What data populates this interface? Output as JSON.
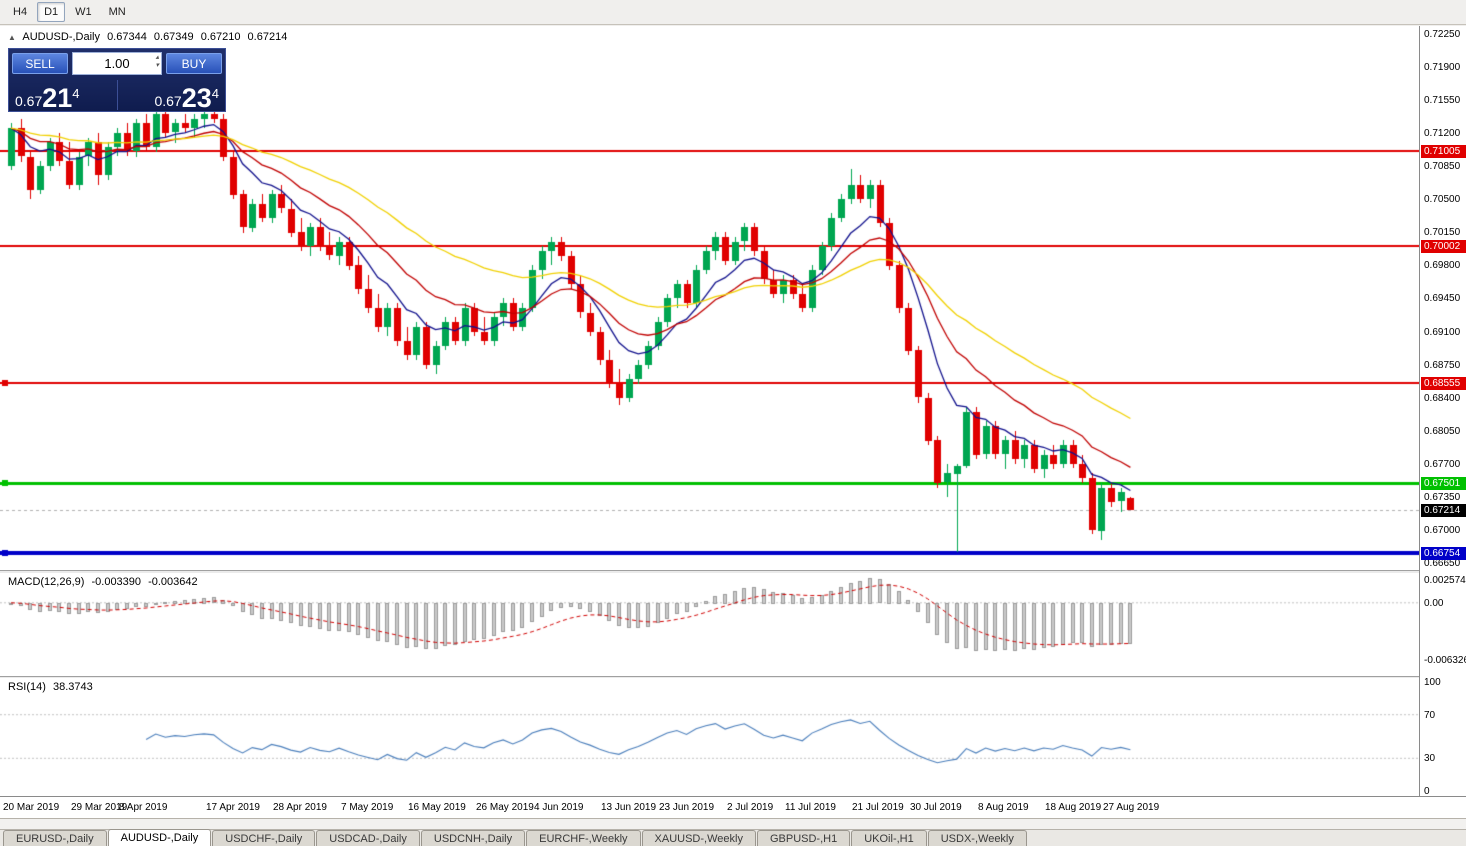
{
  "toolbar": {
    "timeframes": [
      {
        "label": "H4",
        "active": false
      },
      {
        "label": "D1",
        "active": true
      },
      {
        "label": "W1",
        "active": false
      },
      {
        "label": "MN",
        "active": false
      }
    ]
  },
  "icons": {
    "symbol_marker": "▲",
    "volume_spin_up": "▴",
    "volume_spin_down": "▾"
  },
  "chart_header": {
    "symbol": "AUDUSD-,Daily",
    "open": "0.67344",
    "high": "0.67349",
    "low": "0.67210",
    "close": "0.67214"
  },
  "trade_panel": {
    "sell_label": "SELL",
    "buy_label": "BUY",
    "volume": "1.00",
    "sell_price_prefix": "0.67",
    "sell_price_big": "21",
    "sell_price_sup": "4",
    "buy_price_prefix": "0.67",
    "buy_price_big": "23",
    "buy_price_sup": "4"
  },
  "macd_panel": {
    "title": "MACD(12,26,9)",
    "value_main": "-0.003390",
    "value_signal": "-0.003642",
    "axis": [
      "0.002574",
      "0.00",
      "-0.006326"
    ]
  },
  "rsi_panel": {
    "title": "RSI(14)",
    "value": "38.3743",
    "axis": [
      "100",
      "70",
      "30",
      "0"
    ]
  },
  "colors": {
    "bull": "#00a651",
    "bear": "#e00000",
    "ma_fast": "#10108c",
    "ma_medium": "#c00000",
    "ma_slow": "#f0d000",
    "level_red": "#e00000",
    "level_green": "#00c000",
    "level_blue": "#0000c8",
    "current_badge": "#000000",
    "macd_hist": "#c9c9c9",
    "macd_hist_border": "#9c9c9c",
    "macd_signal": "#d00000",
    "rsi_line": "#4a7ebb",
    "grid_dashed": "#c0c0c0"
  },
  "chart_data": {
    "type": "candlestick",
    "symbol": "AUDUSD-",
    "timeframe": "Daily",
    "price_range": {
      "top": 0.7233,
      "bottom": 0.6659
    },
    "price_axis_ticks": [
      "0.72250",
      "0.71900",
      "0.71550",
      "0.71200",
      "0.70850",
      "0.70500",
      "0.70150",
      "0.69800",
      "0.69450",
      "0.69100",
      "0.68750",
      "0.68400",
      "0.68050",
      "0.67700",
      "0.67350",
      "0.67000",
      "0.66650"
    ],
    "levels": [
      {
        "price": 0.71005,
        "label": "0.71005",
        "color": "#e00000",
        "width": 2,
        "handle": false,
        "type": "resistance"
      },
      {
        "price": 0.70002,
        "label": "0.70002",
        "color": "#e00000",
        "width": 2,
        "handle": false,
        "type": "resistance"
      },
      {
        "price": 0.68555,
        "label": "0.68555",
        "color": "#e00000",
        "width": 2,
        "handle": true,
        "type": "resistance"
      },
      {
        "price": 0.67501,
        "label": "0.67501",
        "color": "#00c000",
        "width": 3,
        "handle": true,
        "type": "support"
      },
      {
        "price": 0.66754,
        "label": "0.66754",
        "color": "#0000c8",
        "width": 4,
        "handle": true,
        "type": "support"
      }
    ],
    "current_price": {
      "value": 0.67214,
      "label": "0.67214"
    },
    "moving_averages": [
      {
        "name": "fast",
        "method": "ema",
        "period": 8,
        "color": "#10108c"
      },
      {
        "name": "medium",
        "method": "ema",
        "period": 16,
        "color": "#c00000"
      },
      {
        "name": "slow",
        "method": "ema",
        "period": 34,
        "color": "#f0d000"
      }
    ],
    "macd": {
      "fast": 12,
      "slow": 26,
      "signal": 9,
      "range": {
        "top": 0.0033,
        "bottom": -0.008
      }
    },
    "rsi": {
      "period": 14,
      "levels": [
        70,
        30
      ]
    },
    "date_labels": [
      {
        "i": 0,
        "t": "20 Mar 2019"
      },
      {
        "i": 7,
        "t": "29 Mar 2019"
      },
      {
        "i": 12,
        "t": "8 Apr 2019"
      },
      {
        "i": 21,
        "t": "17 Apr 2019"
      },
      {
        "i": 28,
        "t": "28 Apr 2019"
      },
      {
        "i": 35,
        "t": "7 May 2019"
      },
      {
        "i": 42,
        "t": "16 May 2019"
      },
      {
        "i": 49,
        "t": "26 May 2019"
      },
      {
        "i": 55,
        "t": "4 Jun 2019"
      },
      {
        "i": 62,
        "t": "13 Jun 2019"
      },
      {
        "i": 68,
        "t": "23 Jun 2019"
      },
      {
        "i": 75,
        "t": "2 Jul 2019"
      },
      {
        "i": 81,
        "t": "11 Jul 2019"
      },
      {
        "i": 88,
        "t": "21 Jul 2019"
      },
      {
        "i": 94,
        "t": "30 Jul 2019"
      },
      {
        "i": 101,
        "t": "8 Aug 2019"
      },
      {
        "i": 108,
        "t": "18 Aug 2019"
      },
      {
        "i": 114,
        "t": "27 Aug 2019"
      }
    ],
    "candles": [
      [
        0.7085,
        0.713,
        0.708,
        0.7125
      ],
      [
        0.7125,
        0.7135,
        0.709,
        0.7095
      ],
      [
        0.7095,
        0.71,
        0.705,
        0.706
      ],
      [
        0.706,
        0.709,
        0.7055,
        0.7085
      ],
      [
        0.7085,
        0.7115,
        0.708,
        0.711
      ],
      [
        0.711,
        0.712,
        0.7085,
        0.709
      ],
      [
        0.709,
        0.711,
        0.706,
        0.7065
      ],
      [
        0.7065,
        0.71,
        0.706,
        0.7095
      ],
      [
        0.7095,
        0.7115,
        0.7085,
        0.711
      ],
      [
        0.711,
        0.712,
        0.7065,
        0.7075
      ],
      [
        0.7075,
        0.711,
        0.707,
        0.7105
      ],
      [
        0.7105,
        0.7125,
        0.7095,
        0.712
      ],
      [
        0.712,
        0.713,
        0.7095,
        0.71
      ],
      [
        0.71,
        0.7135,
        0.7095,
        0.713
      ],
      [
        0.713,
        0.714,
        0.71,
        0.7105
      ],
      [
        0.7105,
        0.7145,
        0.71,
        0.714
      ],
      [
        0.714,
        0.7145,
        0.7115,
        0.712
      ],
      [
        0.712,
        0.7135,
        0.711,
        0.713
      ],
      [
        0.713,
        0.714,
        0.712,
        0.7125
      ],
      [
        0.7125,
        0.714,
        0.7115,
        0.7135
      ],
      [
        0.7135,
        0.7145,
        0.7125,
        0.714
      ],
      [
        0.714,
        0.7148,
        0.713,
        0.7135
      ],
      [
        0.7135,
        0.714,
        0.709,
        0.7095
      ],
      [
        0.7095,
        0.71,
        0.705,
        0.7055
      ],
      [
        0.7055,
        0.706,
        0.7015,
        0.702
      ],
      [
        0.702,
        0.705,
        0.7015,
        0.7045
      ],
      [
        0.7045,
        0.7055,
        0.7025,
        0.703
      ],
      [
        0.703,
        0.706,
        0.7025,
        0.7055
      ],
      [
        0.7055,
        0.7065,
        0.7035,
        0.704
      ],
      [
        0.704,
        0.705,
        0.701,
        0.7015
      ],
      [
        0.7015,
        0.703,
        0.6995,
        0.7
      ],
      [
        0.7,
        0.7025,
        0.699,
        0.702
      ],
      [
        0.702,
        0.703,
        0.6995,
        0.7
      ],
      [
        0.7,
        0.7015,
        0.6985,
        0.699
      ],
      [
        0.699,
        0.701,
        0.698,
        0.7005
      ],
      [
        0.7005,
        0.701,
        0.6975,
        0.698
      ],
      [
        0.698,
        0.699,
        0.695,
        0.6955
      ],
      [
        0.6955,
        0.697,
        0.693,
        0.6935
      ],
      [
        0.6935,
        0.695,
        0.691,
        0.6915
      ],
      [
        0.6915,
        0.694,
        0.6905,
        0.6935
      ],
      [
        0.6935,
        0.694,
        0.6895,
        0.69
      ],
      [
        0.69,
        0.6915,
        0.688,
        0.6885
      ],
      [
        0.6885,
        0.692,
        0.688,
        0.6915
      ],
      [
        0.6915,
        0.692,
        0.687,
        0.6875
      ],
      [
        0.6875,
        0.69,
        0.6865,
        0.6895
      ],
      [
        0.6895,
        0.6925,
        0.689,
        0.692
      ],
      [
        0.692,
        0.6925,
        0.6895,
        0.69
      ],
      [
        0.69,
        0.694,
        0.6895,
        0.6935
      ],
      [
        0.6935,
        0.694,
        0.6905,
        0.691
      ],
      [
        0.691,
        0.6925,
        0.6895,
        0.69
      ],
      [
        0.69,
        0.693,
        0.6895,
        0.6925
      ],
      [
        0.6925,
        0.6945,
        0.6915,
        0.694
      ],
      [
        0.694,
        0.6945,
        0.691,
        0.6915
      ],
      [
        0.6915,
        0.694,
        0.691,
        0.6935
      ],
      [
        0.6935,
        0.698,
        0.693,
        0.6975
      ],
      [
        0.6975,
        0.7,
        0.6965,
        0.6995
      ],
      [
        0.6995,
        0.701,
        0.698,
        0.7005
      ],
      [
        0.7005,
        0.701,
        0.6985,
        0.699
      ],
      [
        0.699,
        0.6995,
        0.6955,
        0.696
      ],
      [
        0.696,
        0.697,
        0.6925,
        0.693
      ],
      [
        0.693,
        0.694,
        0.6905,
        0.691
      ],
      [
        0.691,
        0.6915,
        0.6875,
        0.688
      ],
      [
        0.688,
        0.689,
        0.685,
        0.6855
      ],
      [
        0.6855,
        0.687,
        0.6832,
        0.684
      ],
      [
        0.684,
        0.6865,
        0.6835,
        0.686
      ],
      [
        0.686,
        0.688,
        0.6855,
        0.6875
      ],
      [
        0.6875,
        0.69,
        0.687,
        0.6895
      ],
      [
        0.6895,
        0.6925,
        0.689,
        0.692
      ],
      [
        0.692,
        0.695,
        0.6915,
        0.6945
      ],
      [
        0.6945,
        0.6965,
        0.6935,
        0.696
      ],
      [
        0.696,
        0.6965,
        0.6935,
        0.694
      ],
      [
        0.694,
        0.698,
        0.6935,
        0.6975
      ],
      [
        0.6975,
        0.7,
        0.697,
        0.6995
      ],
      [
        0.6995,
        0.7015,
        0.6985,
        0.701
      ],
      [
        0.701,
        0.7015,
        0.698,
        0.6985
      ],
      [
        0.6985,
        0.701,
        0.698,
        0.7005
      ],
      [
        0.7005,
        0.7025,
        0.6995,
        0.702
      ],
      [
        0.702,
        0.7025,
        0.699,
        0.6995
      ],
      [
        0.6995,
        0.7,
        0.696,
        0.6965
      ],
      [
        0.6965,
        0.6975,
        0.6945,
        0.695
      ],
      [
        0.695,
        0.697,
        0.694,
        0.6965
      ],
      [
        0.6965,
        0.697,
        0.6945,
        0.695
      ],
      [
        0.695,
        0.696,
        0.693,
        0.6935
      ],
      [
        0.6935,
        0.698,
        0.693,
        0.6975
      ],
      [
        0.6975,
        0.7005,
        0.697,
        0.7
      ],
      [
        0.7,
        0.7035,
        0.6995,
        0.703
      ],
      [
        0.703,
        0.7055,
        0.7025,
        0.705
      ],
      [
        0.705,
        0.7082,
        0.7045,
        0.7065
      ],
      [
        0.7065,
        0.7075,
        0.7045,
        0.705
      ],
      [
        0.705,
        0.707,
        0.704,
        0.7065
      ],
      [
        0.7065,
        0.707,
        0.702,
        0.7025
      ],
      [
        0.7025,
        0.703,
        0.6975,
        0.698
      ],
      [
        0.698,
        0.6985,
        0.693,
        0.6935
      ],
      [
        0.6935,
        0.694,
        0.6885,
        0.689
      ],
      [
        0.689,
        0.6895,
        0.6835,
        0.684
      ],
      [
        0.684,
        0.6845,
        0.679,
        0.6795
      ],
      [
        0.6795,
        0.68,
        0.6745,
        0.675
      ],
      [
        0.675,
        0.677,
        0.6735,
        0.676
      ],
      [
        0.676,
        0.677,
        0.6677,
        0.6768
      ],
      [
        0.6768,
        0.683,
        0.6765,
        0.6825
      ],
      [
        0.6825,
        0.683,
        0.6775,
        0.678
      ],
      [
        0.678,
        0.6815,
        0.6775,
        0.681
      ],
      [
        0.681,
        0.6815,
        0.6775,
        0.678
      ],
      [
        0.678,
        0.68,
        0.6765,
        0.6795
      ],
      [
        0.6795,
        0.6805,
        0.677,
        0.6775
      ],
      [
        0.6775,
        0.6795,
        0.6765,
        0.679
      ],
      [
        0.679,
        0.6795,
        0.676,
        0.6765
      ],
      [
        0.6765,
        0.6785,
        0.6755,
        0.678
      ],
      [
        0.678,
        0.679,
        0.6765,
        0.677
      ],
      [
        0.677,
        0.6795,
        0.6765,
        0.679
      ],
      [
        0.679,
        0.6795,
        0.6765,
        0.677
      ],
      [
        0.677,
        0.678,
        0.675,
        0.6755
      ],
      [
        0.6755,
        0.676,
        0.6695,
        0.67
      ],
      [
        0.67,
        0.675,
        0.669,
        0.6745
      ],
      [
        0.6745,
        0.675,
        0.6725,
        0.673
      ],
      [
        0.673,
        0.6745,
        0.672,
        0.674
      ],
      [
        0.67344,
        0.67349,
        0.6721,
        0.67214
      ]
    ]
  },
  "tabs": [
    {
      "label": "EURUSD-,Daily",
      "active": false
    },
    {
      "label": "AUDUSD-,Daily",
      "active": true
    },
    {
      "label": "USDCHF-,Daily",
      "active": false
    },
    {
      "label": "USDCAD-,Daily",
      "active": false
    },
    {
      "label": "USDCNH-,Daily",
      "active": false
    },
    {
      "label": "EURCHF-,Weekly",
      "active": false
    },
    {
      "label": "XAUUSD-,Weekly",
      "active": false
    },
    {
      "label": "GBPUSD-,H1",
      "active": false
    },
    {
      "label": "UKOil-,H1",
      "active": false
    },
    {
      "label": "USDX-,Weekly",
      "active": false
    }
  ]
}
